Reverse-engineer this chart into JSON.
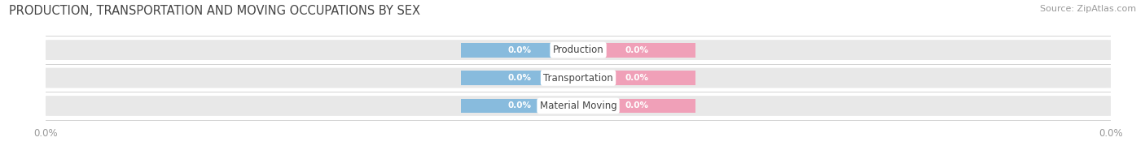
{
  "title": "PRODUCTION, TRANSPORTATION AND MOVING OCCUPATIONS BY SEX",
  "source": "Source: ZipAtlas.com",
  "categories": [
    "Production",
    "Transportation",
    "Material Moving"
  ],
  "male_values": [
    0.0,
    0.0,
    0.0
  ],
  "female_values": [
    0.0,
    0.0,
    0.0
  ],
  "male_color": "#88BBDD",
  "female_color": "#F0A0B8",
  "bar_bg_color": "#E8E8E8",
  "title_fontsize": 10.5,
  "source_fontsize": 8,
  "bar_height": 0.72,
  "background_color": "#ffffff",
  "axis_tick_color": "#999999",
  "center_text_color": "#444444",
  "bar_label_fontsize": 7.5,
  "cat_label_fontsize": 8.5,
  "xlim_left": -1.0,
  "xlim_right": 1.0,
  "male_bar_width": 0.22,
  "female_bar_width": 0.22
}
